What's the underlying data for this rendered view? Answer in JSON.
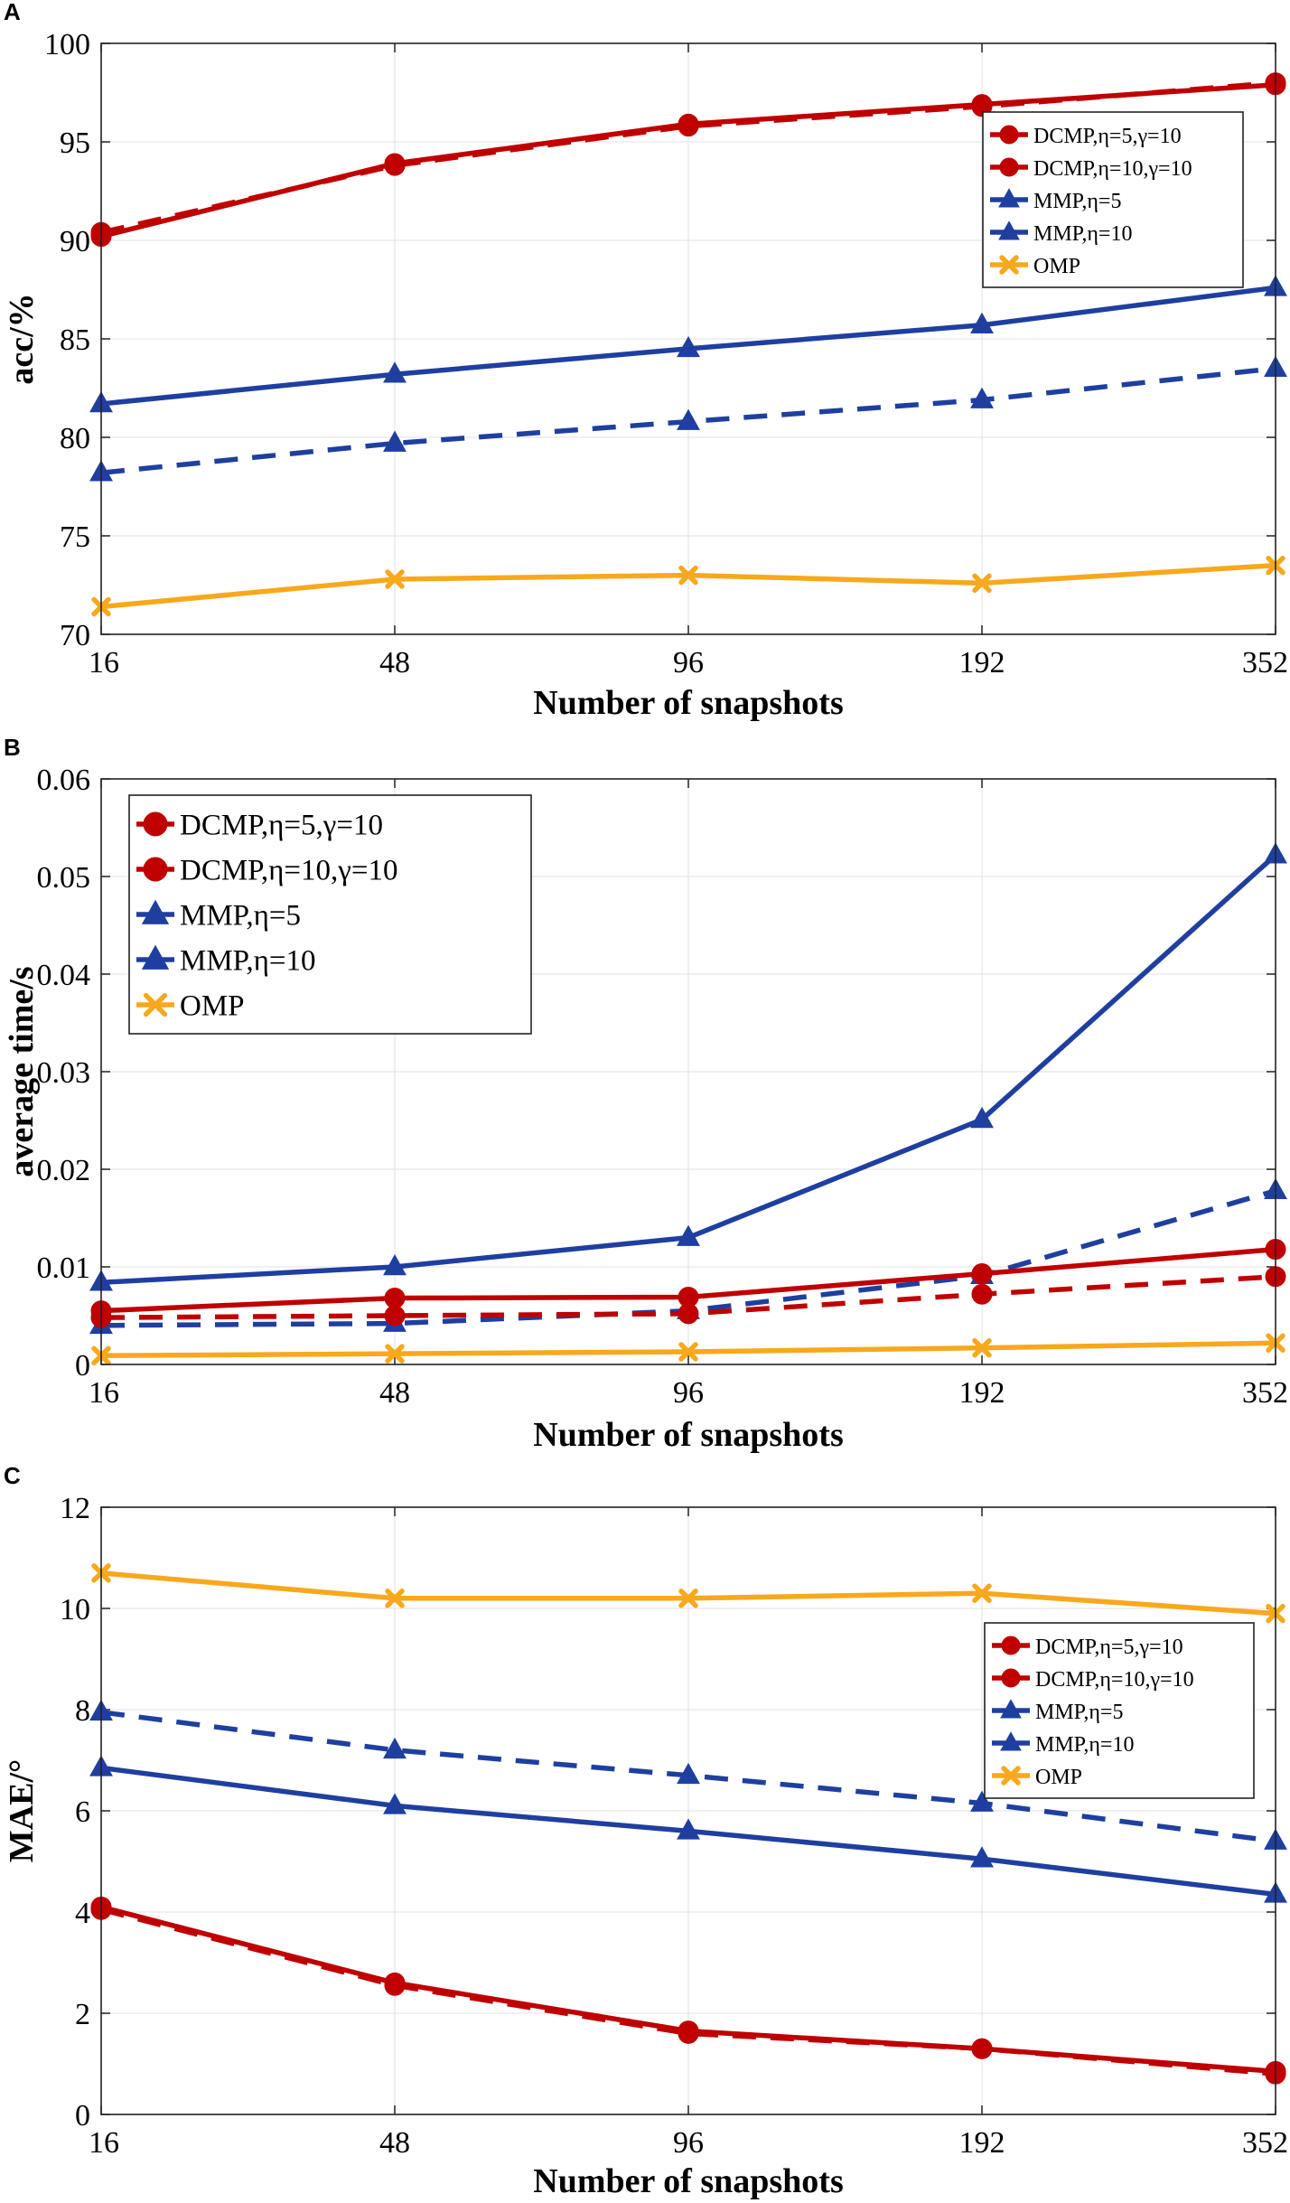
{
  "panels": [
    "A",
    "B",
    "C"
  ],
  "series_style": {
    "DCMP,η=5,γ=10": {
      "color": "#c00000",
      "marker": "circle",
      "dash": false
    },
    "DCMP,η=10,γ=10": {
      "color": "#c00000",
      "marker": "circle",
      "dash": true
    },
    "MMP,η=5": {
      "color": "#1f3fa0",
      "marker": "triangle",
      "dash": true
    },
    "MMP,η=10": {
      "color": "#1f3fa0",
      "marker": "triangle",
      "dash": false
    },
    "OMP": {
      "color": "#f8a81c",
      "marker": "x",
      "dash": false
    }
  },
  "chart_data": [
    {
      "panel": "A",
      "type": "line",
      "title": "",
      "xlabel": "Number of snapshots",
      "ylabel": "acc/%",
      "categories": [
        "16",
        "48",
        "96",
        "192",
        "352"
      ],
      "ylim": [
        70,
        100
      ],
      "yticks": [
        70,
        75,
        80,
        85,
        90,
        95,
        100
      ],
      "grid": true,
      "legend_position": "top-right",
      "legend": [
        "DCMP,η=5,γ=10",
        "DCMP,η=10,γ=10",
        "MMP,η=5",
        "MMP,η=10",
        "OMP"
      ],
      "series": [
        {
          "name": "DCMP,η=5,γ=10",
          "values": [
            90.2,
            93.9,
            95.9,
            96.9,
            97.9
          ]
        },
        {
          "name": "DCMP,η=10,γ=10",
          "values": [
            90.4,
            93.8,
            95.8,
            96.8,
            98.0
          ]
        },
        {
          "name": "MMP,η=5",
          "values": [
            78.2,
            79.7,
            80.8,
            81.9,
            83.5
          ]
        },
        {
          "name": "MMP,η=10",
          "values": [
            81.7,
            83.2,
            84.5,
            85.7,
            87.6
          ]
        },
        {
          "name": "OMP",
          "values": [
            71.4,
            72.8,
            73.0,
            72.6,
            73.5
          ]
        }
      ]
    },
    {
      "panel": "B",
      "type": "line",
      "title": "",
      "xlabel": "Number of snapshots",
      "ylabel": "average time/s",
      "categories": [
        "16",
        "48",
        "96",
        "192",
        "352"
      ],
      "ylim": [
        0,
        0.06
      ],
      "yticks": [
        0,
        0.01,
        0.02,
        0.03,
        0.04,
        0.05,
        0.06
      ],
      "yticklabels": [
        "0",
        "0.01",
        "0.02",
        "0.03",
        "0.04",
        "0.05",
        "0.06"
      ],
      "grid": true,
      "legend_position": "top-left",
      "legend": [
        "DCMP,η=5,γ=10",
        "DCMP,η=10,γ=10",
        "MMP,η=5",
        "MMP,η=10",
        "OMP"
      ],
      "series": [
        {
          "name": "DCMP,η=5,γ=10",
          "values": [
            0.0055,
            0.0068,
            0.0069,
            0.0093,
            0.0118
          ]
        },
        {
          "name": "DCMP,η=10,γ=10",
          "values": [
            0.0048,
            0.005,
            0.0052,
            0.0072,
            0.009
          ]
        },
        {
          "name": "MMP,η=5",
          "values": [
            0.004,
            0.0042,
            0.0055,
            0.0091,
            0.0178
          ]
        },
        {
          "name": "MMP,η=10",
          "values": [
            0.0084,
            0.01,
            0.013,
            0.0251,
            0.0522
          ]
        },
        {
          "name": "OMP",
          "values": [
            0.0009,
            0.0011,
            0.0013,
            0.0017,
            0.0022
          ]
        }
      ]
    },
    {
      "panel": "C",
      "type": "line",
      "title": "",
      "xlabel": "Number of snapshots",
      "ylabel": "MAE/°",
      "categories": [
        "16",
        "48",
        "96",
        "192",
        "352"
      ],
      "ylim": [
        0,
        12
      ],
      "yticks": [
        0,
        2,
        4,
        6,
        8,
        10,
        12
      ],
      "grid": true,
      "legend_position": "right",
      "legend": [
        "DCMP,η=5,γ=10",
        "DCMP,η=10,γ=10",
        "MMP,η=5",
        "MMP,η=10",
        "OMP"
      ],
      "series": [
        {
          "name": "DCMP,η=5,γ=10",
          "values": [
            4.1,
            2.6,
            1.65,
            1.3,
            0.85
          ]
        },
        {
          "name": "DCMP,η=10,γ=10",
          "values": [
            4.05,
            2.55,
            1.6,
            1.3,
            0.8
          ]
        },
        {
          "name": "MMP,η=5",
          "values": [
            7.95,
            7.2,
            6.7,
            6.15,
            5.4
          ]
        },
        {
          "name": "MMP,η=10",
          "values": [
            6.85,
            6.1,
            5.6,
            5.05,
            4.35
          ]
        },
        {
          "name": "OMP",
          "values": [
            10.7,
            10.2,
            10.2,
            10.3,
            9.9
          ]
        }
      ]
    }
  ]
}
